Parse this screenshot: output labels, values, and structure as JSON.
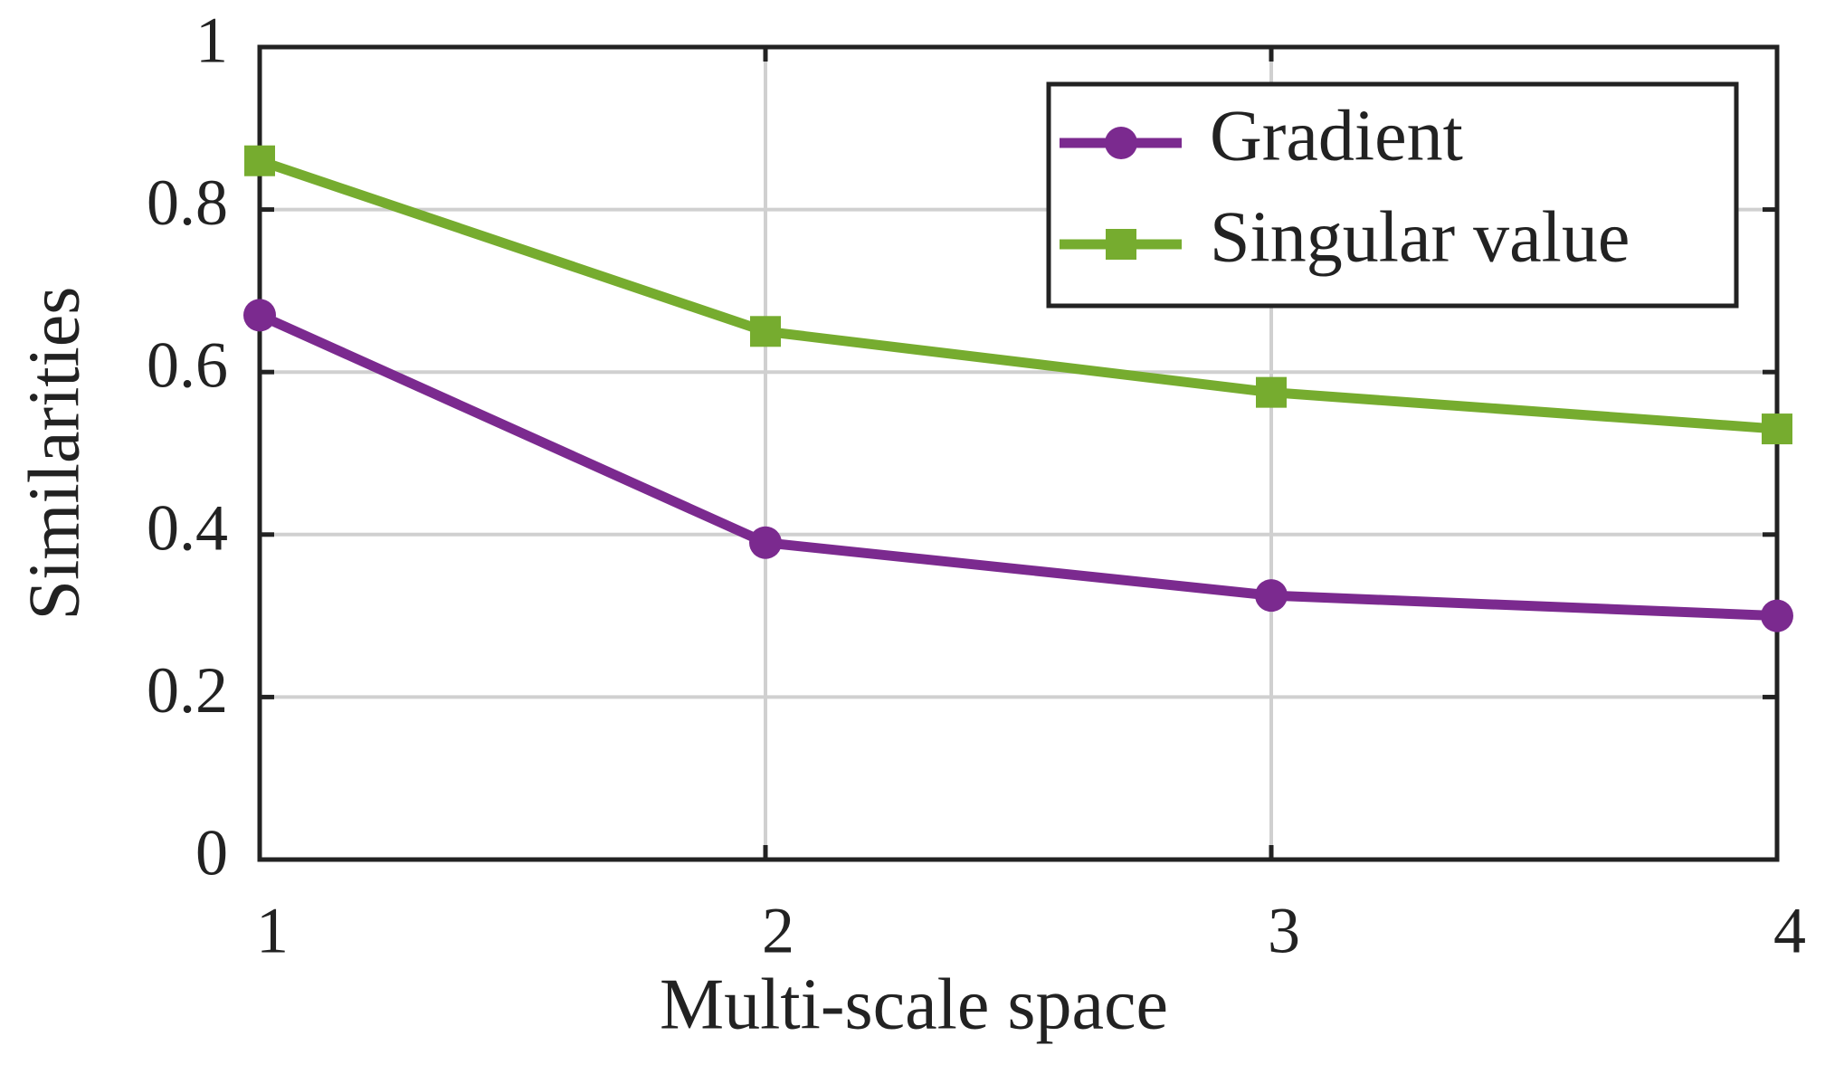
{
  "chart_data": {
    "type": "line",
    "x": [
      1,
      2,
      3,
      4
    ],
    "series": [
      {
        "name": "Gradient",
        "color": "#7b2a8f",
        "marker": "circle",
        "values": [
          0.67,
          0.39,
          0.325,
          0.3
        ]
      },
      {
        "name": "Singular value",
        "color": "#76ac2f",
        "marker": "square",
        "values": [
          0.86,
          0.65,
          0.575,
          0.53
        ]
      }
    ],
    "xlabel": "Multi-scale space",
    "ylabel": "Similarities",
    "xlim": [
      1,
      4
    ],
    "xticks": [
      1,
      2,
      3,
      4
    ],
    "ylim": [
      0,
      1
    ],
    "yticks": [
      0,
      0.2,
      0.4,
      0.6,
      0.8,
      1
    ],
    "grid": true,
    "legend": "upper right"
  }
}
